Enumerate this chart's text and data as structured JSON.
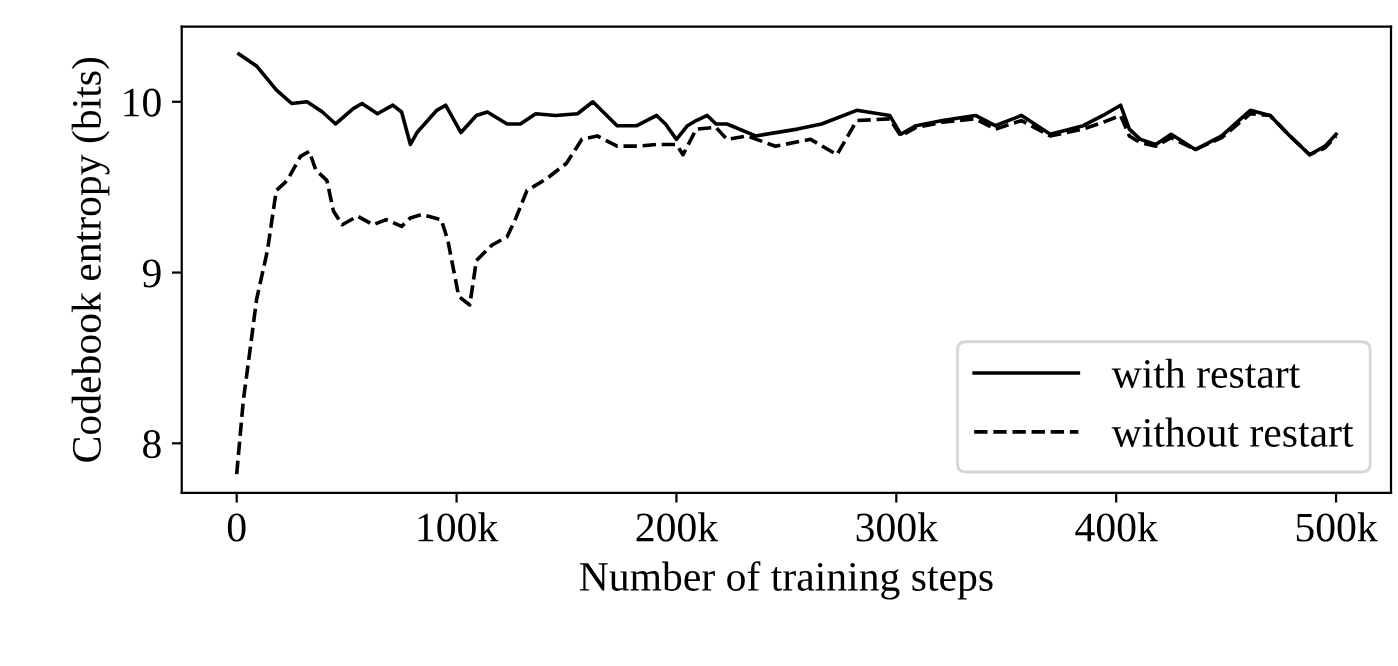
{
  "chart_data": {
    "type": "line",
    "xlabel": "Number of training steps",
    "ylabel": "Codebook entropy (bits)",
    "xlim": [
      -25000,
      525000
    ],
    "ylim": [
      7.71,
      10.44
    ],
    "xticks": [
      {
        "value": 0,
        "label": "0"
      },
      {
        "value": 100000,
        "label": "100k"
      },
      {
        "value": 200000,
        "label": "200k"
      },
      {
        "value": 300000,
        "label": "300k"
      },
      {
        "value": 400000,
        "label": "400k"
      },
      {
        "value": 500000,
        "label": "500k"
      }
    ],
    "yticks": [
      8,
      9,
      10
    ],
    "grid": false,
    "legend": "bottom right",
    "marker": "none",
    "series": [
      {
        "name": "with restart",
        "color": "#000000",
        "line_style": "solid",
        "x": [
          1000,
          9000,
          18000,
          25000,
          32000,
          39000,
          45000,
          53000,
          57000,
          64000,
          71000,
          75000,
          79000,
          82000,
          91000,
          95000,
          102000,
          109000,
          114000,
          123000,
          129000,
          136000,
          145000,
          155000,
          162000,
          173000,
          182000,
          191000,
          195000,
          200000,
          205000,
          209000,
          214000,
          218000,
          223000,
          236000,
          255000,
          266000,
          282000,
          297000,
          302000,
          309000,
          321000,
          336000,
          345000,
          357000,
          370000,
          385000,
          394000,
          402000,
          406000,
          411000,
          418000,
          425000,
          436000,
          448000,
          461000,
          470000,
          479000,
          488000,
          495000,
          500000
        ],
        "values": [
          10.28,
          10.21,
          10.07,
          9.99,
          10.0,
          9.94,
          9.87,
          9.96,
          9.99,
          9.93,
          9.98,
          9.94,
          9.75,
          9.82,
          9.95,
          9.98,
          9.82,
          9.92,
          9.94,
          9.87,
          9.87,
          9.93,
          9.92,
          9.93,
          10.0,
          9.86,
          9.86,
          9.92,
          9.87,
          9.78,
          9.86,
          9.89,
          9.92,
          9.87,
          9.87,
          9.8,
          9.84,
          9.87,
          9.95,
          9.92,
          9.81,
          9.86,
          9.89,
          9.92,
          9.86,
          9.92,
          9.81,
          9.86,
          9.92,
          9.98,
          9.84,
          9.78,
          9.75,
          9.81,
          9.72,
          9.8,
          9.95,
          9.92,
          9.8,
          9.69,
          9.74,
          9.81
        ]
      },
      {
        "name": "without restart",
        "color": "#000000",
        "line_style": "dashed",
        "x": [
          0,
          3000,
          6000,
          9000,
          14000,
          18000,
          23000,
          29000,
          33000,
          36000,
          41000,
          44000,
          48000,
          55000,
          62000,
          68000,
          75000,
          79000,
          84000,
          93000,
          96000,
          101000,
          106000,
          109000,
          116000,
          123000,
          127000,
          132000,
          141000,
          150000,
          157000,
          164000,
          173000,
          182000,
          191000,
          200000,
          203000,
          209000,
          218000,
          223000,
          232000,
          245000,
          261000,
          273000,
          282000,
          297000,
          302000,
          309000,
          321000,
          336000,
          345000,
          357000,
          370000,
          385000,
          394000,
          402000,
          406000,
          411000,
          418000,
          425000,
          436000,
          448000,
          461000,
          470000,
          479000,
          488000,
          495000,
          500000
        ],
        "values": [
          7.82,
          8.25,
          8.54,
          8.84,
          9.13,
          9.48,
          9.54,
          9.68,
          9.71,
          9.6,
          9.54,
          9.36,
          9.28,
          9.33,
          9.28,
          9.31,
          9.27,
          9.32,
          9.34,
          9.31,
          9.19,
          8.86,
          8.81,
          9.07,
          9.16,
          9.21,
          9.32,
          9.48,
          9.55,
          9.64,
          9.78,
          9.8,
          9.74,
          9.74,
          9.75,
          9.75,
          9.69,
          9.84,
          9.85,
          9.78,
          9.8,
          9.74,
          9.78,
          9.69,
          9.89,
          9.9,
          9.8,
          9.85,
          9.88,
          9.9,
          9.84,
          9.89,
          9.8,
          9.84,
          9.88,
          9.92,
          9.8,
          9.76,
          9.74,
          9.79,
          9.72,
          9.79,
          9.93,
          9.92,
          9.8,
          9.69,
          9.73,
          9.8
        ]
      }
    ]
  }
}
